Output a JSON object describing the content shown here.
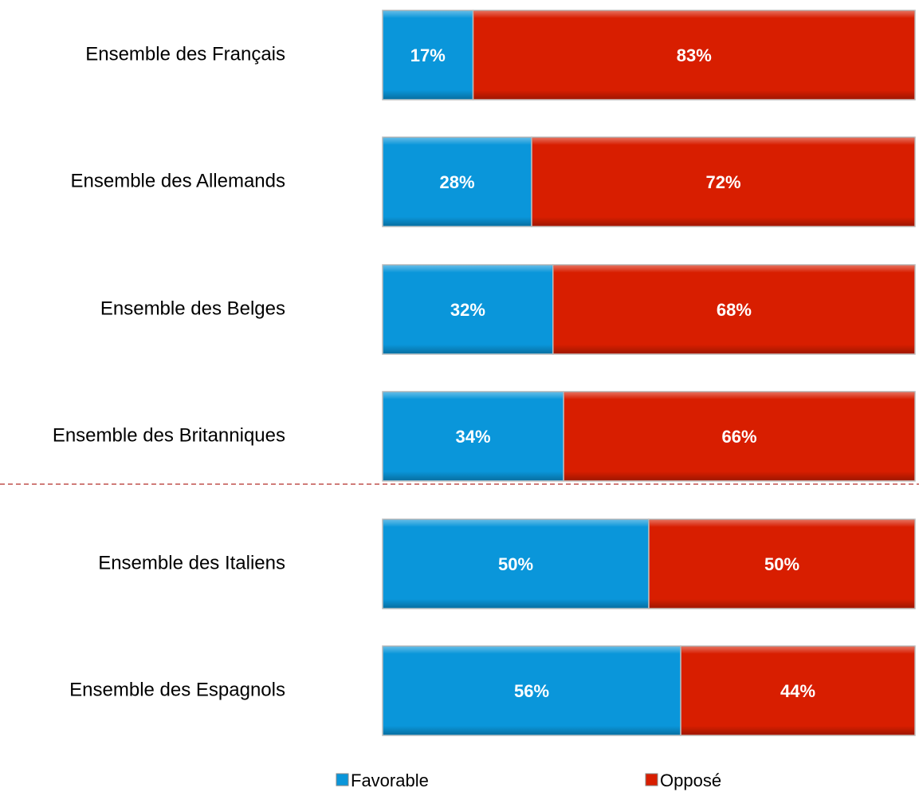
{
  "chart_data": {
    "type": "stacked-bar-horizontal",
    "categories": [
      "Ensemble des Français",
      "Ensemble des Allemands",
      "Ensemble des Belges",
      "Ensemble des Britanniques",
      "Ensemble des Italiens",
      "Ensemble des Espagnols"
    ],
    "series": [
      {
        "name": "Favorable",
        "color": "#0a96da",
        "values": [
          17,
          28,
          32,
          34,
          50,
          56
        ],
        "value_labels": [
          "17%",
          "28%",
          "32%",
          "34%",
          "50%",
          "56%"
        ]
      },
      {
        "name": "Opposé",
        "color": "#d81e00",
        "values": [
          83,
          72,
          68,
          66,
          50,
          44
        ],
        "value_labels": [
          "83%",
          "72%",
          "68%",
          "66%",
          "50%",
          "44%"
        ]
      }
    ],
    "xlim": [
      0,
      100
    ]
  }
}
